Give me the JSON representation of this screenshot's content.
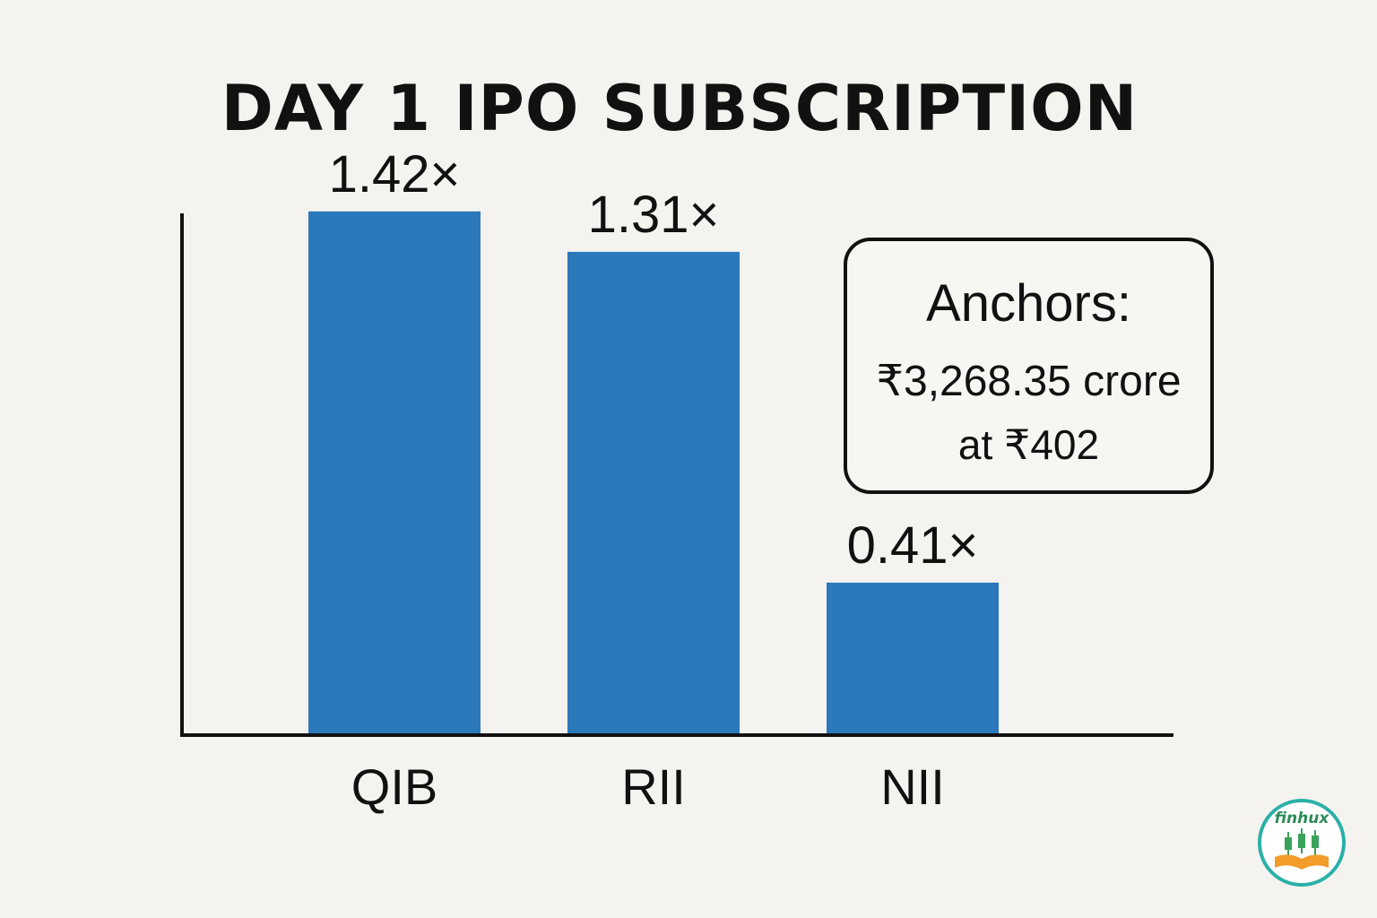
{
  "chart_data": {
    "type": "bar",
    "title": "DAY 1 IPO SUBSCRIPTION",
    "categories": [
      "QIB",
      "RII",
      "NII"
    ],
    "values": [
      1.42,
      1.31,
      0.41
    ],
    "value_labels": [
      "1.42×",
      "1.31×",
      "0.41×"
    ],
    "ylim": [
      0,
      1.6
    ],
    "grid": false,
    "bar_color": "#2b78bb"
  },
  "annotation": {
    "title": "Anchors:",
    "amount": "₹3,268.35 crore",
    "price": "at ₹402"
  },
  "logo": {
    "text": "finhux",
    "icon": "candlestick-book-icon",
    "ring_color": "#2bb0a8",
    "book_color": "#f39c2a",
    "candle_color": "#3aa35a"
  }
}
